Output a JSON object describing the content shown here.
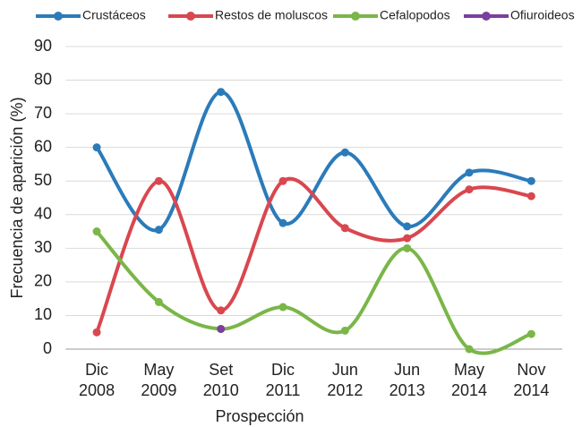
{
  "chart_data": {
    "type": "line",
    "y_label": "Frecuencia de aparición  (%)",
    "x_label": "Prospección",
    "categories": [
      "Dic 2008",
      "May 2009",
      "Set 2010",
      "Dic 2011",
      "Jun 2012",
      "Jun 2013",
      "May 2014",
      "Nov 2014"
    ],
    "series": [
      {
        "name": "Crustáceos",
        "color": "#2b7bba",
        "values": [
          60,
          35.5,
          76.5,
          37.5,
          58.5,
          36.5,
          52.5,
          50
        ]
      },
      {
        "name": "Restos de moluscos",
        "color": "#d9474f",
        "values": [
          5,
          50,
          11.5,
          50,
          36,
          33,
          47.5,
          45.5
        ]
      },
      {
        "name": "Cefalopodos",
        "color": "#7ab648",
        "values": [
          35,
          14,
          6,
          12.5,
          5.5,
          30,
          0,
          4.5
        ]
      },
      {
        "name": "Ofiuroideos",
        "color": "#7b3f9e",
        "values": [
          null,
          null,
          6,
          null,
          null,
          null,
          null,
          null
        ]
      }
    ],
    "ylim": [
      0,
      90
    ],
    "yticks": [
      0,
      10,
      20,
      30,
      40,
      50,
      60,
      70,
      80,
      90
    ],
    "grid": true,
    "smooth": true,
    "legend": "top"
  }
}
